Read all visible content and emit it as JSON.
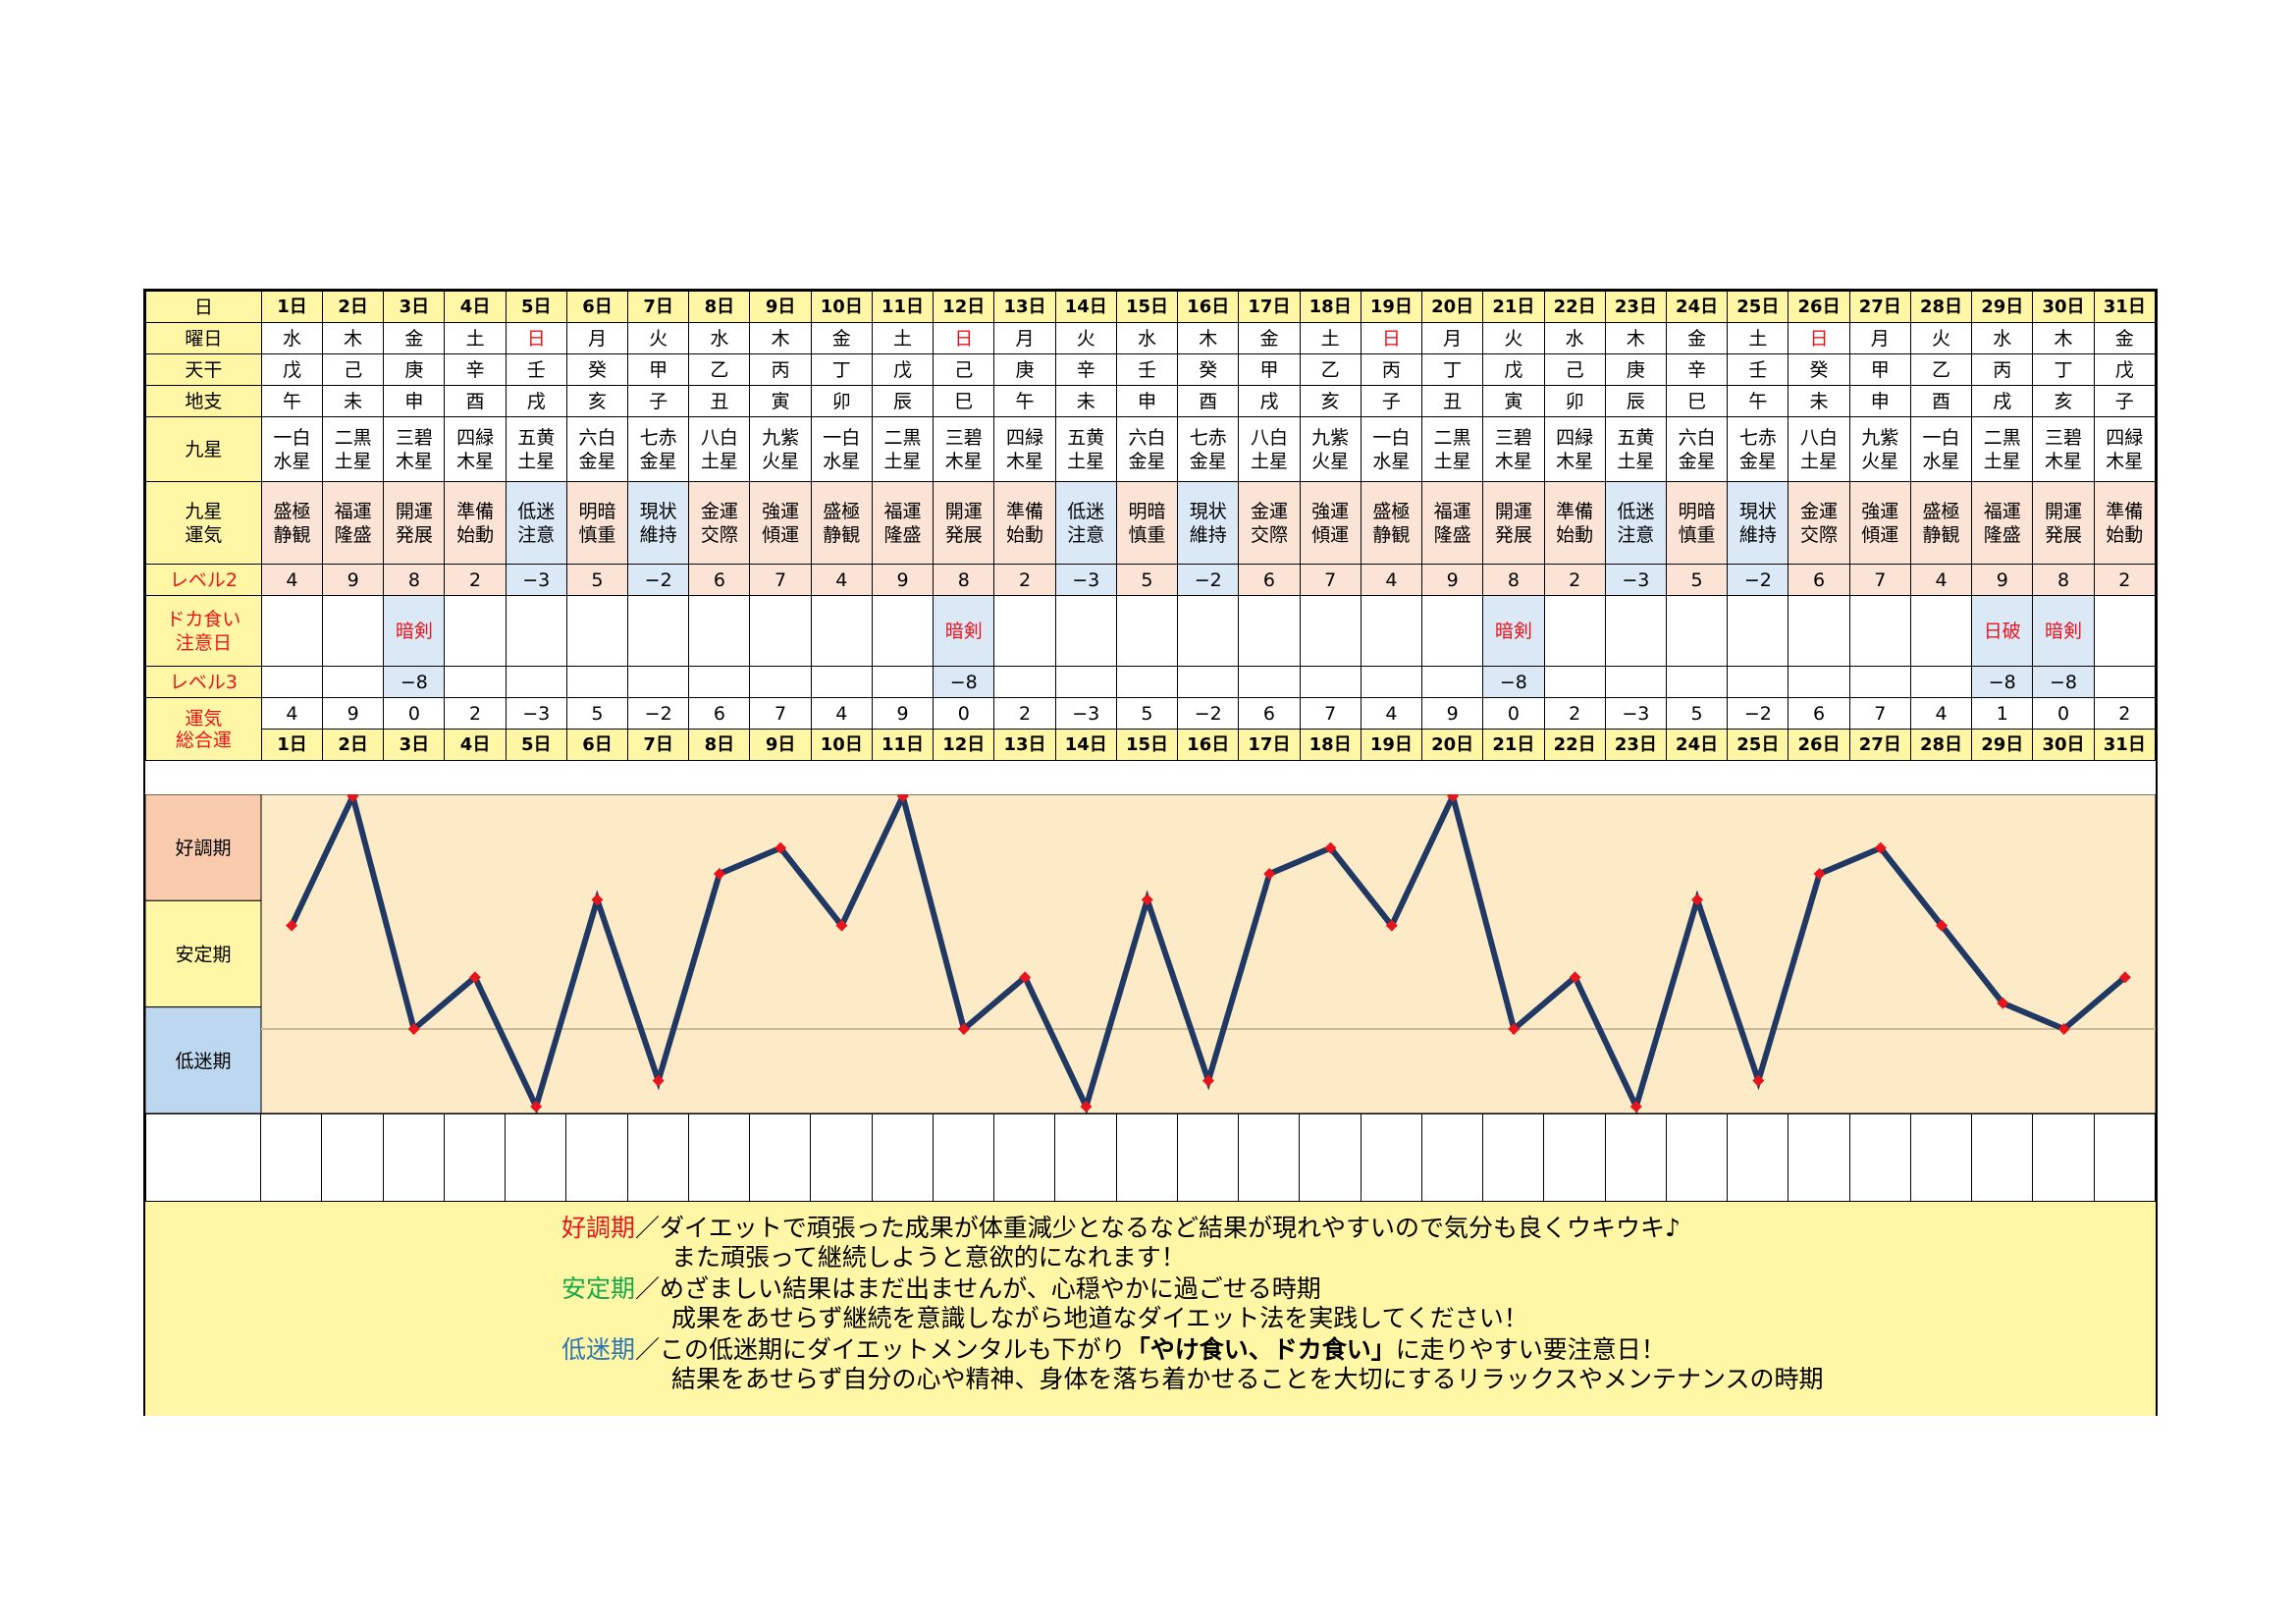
{
  "labels": {
    "day": "日",
    "weekday": "曜日",
    "kan": "天干",
    "shi": "地支",
    "kyusei": "九星",
    "unki": [
      "九星",
      "運気"
    ],
    "level2": "レベル2",
    "doka": [
      "ドカ食い",
      "注意日"
    ],
    "level3": "レベル3",
    "total": [
      "運気",
      "総合運"
    ]
  },
  "days": [
    "1日",
    "2日",
    "3日",
    "4日",
    "5日",
    "6日",
    "7日",
    "8日",
    "9日",
    "10日",
    "11日",
    "12日",
    "13日",
    "14日",
    "15日",
    "16日",
    "17日",
    "18日",
    "19日",
    "20日",
    "21日",
    "22日",
    "23日",
    "24日",
    "25日",
    "26日",
    "27日",
    "28日",
    "29日",
    "30日",
    "31日"
  ],
  "weekdays": [
    "水",
    "木",
    "金",
    "土",
    "日",
    "月",
    "火",
    "水",
    "木",
    "金",
    "土",
    "日",
    "月",
    "火",
    "水",
    "木",
    "金",
    "土",
    "日",
    "月",
    "火",
    "水",
    "木",
    "金",
    "土",
    "日",
    "月",
    "火",
    "水",
    "木",
    "金"
  ],
  "kan": [
    "戊",
    "己",
    "庚",
    "辛",
    "壬",
    "癸",
    "甲",
    "乙",
    "丙",
    "丁",
    "戊",
    "己",
    "庚",
    "辛",
    "壬",
    "癸",
    "甲",
    "乙",
    "丙",
    "丁",
    "戊",
    "己",
    "庚",
    "辛",
    "壬",
    "癸",
    "甲",
    "乙",
    "丙",
    "丁",
    "戊"
  ],
  "shi": [
    "午",
    "未",
    "申",
    "酉",
    "戌",
    "亥",
    "子",
    "丑",
    "寅",
    "卯",
    "辰",
    "巳",
    "午",
    "未",
    "申",
    "酉",
    "戌",
    "亥",
    "子",
    "丑",
    "寅",
    "卯",
    "辰",
    "巳",
    "午",
    "未",
    "申",
    "酉",
    "戌",
    "亥",
    "子"
  ],
  "kyusei": [
    [
      "一白",
      "水星"
    ],
    [
      "二黒",
      "土星"
    ],
    [
      "三碧",
      "木星"
    ],
    [
      "四緑",
      "木星"
    ],
    [
      "五黄",
      "土星"
    ],
    [
      "六白",
      "金星"
    ],
    [
      "七赤",
      "金星"
    ],
    [
      "八白",
      "土星"
    ],
    [
      "九紫",
      "火星"
    ],
    [
      "一白",
      "水星"
    ],
    [
      "二黒",
      "土星"
    ],
    [
      "三碧",
      "木星"
    ],
    [
      "四緑",
      "木星"
    ],
    [
      "五黄",
      "土星"
    ],
    [
      "六白",
      "金星"
    ],
    [
      "七赤",
      "金星"
    ],
    [
      "八白",
      "土星"
    ],
    [
      "九紫",
      "火星"
    ],
    [
      "一白",
      "水星"
    ],
    [
      "二黒",
      "土星"
    ],
    [
      "三碧",
      "木星"
    ],
    [
      "四緑",
      "木星"
    ],
    [
      "五黄",
      "土星"
    ],
    [
      "六白",
      "金星"
    ],
    [
      "七赤",
      "金星"
    ],
    [
      "八白",
      "土星"
    ],
    [
      "九紫",
      "火星"
    ],
    [
      "一白",
      "水星"
    ],
    [
      "二黒",
      "土星"
    ],
    [
      "三碧",
      "木星"
    ],
    [
      "四緑",
      "木星"
    ]
  ],
  "unki": [
    [
      "盛極",
      "静観"
    ],
    [
      "福運",
      "隆盛"
    ],
    [
      "開運",
      "発展"
    ],
    [
      "準備",
      "始動"
    ],
    [
      "低迷",
      "注意"
    ],
    [
      "明暗",
      "慎重"
    ],
    [
      "現状",
      "維持"
    ],
    [
      "金運",
      "交際"
    ],
    [
      "強運",
      "傾運"
    ],
    [
      "盛極",
      "静観"
    ],
    [
      "福運",
      "隆盛"
    ],
    [
      "開運",
      "発展"
    ],
    [
      "準備",
      "始動"
    ],
    [
      "低迷",
      "注意"
    ],
    [
      "明暗",
      "慎重"
    ],
    [
      "現状",
      "維持"
    ],
    [
      "金運",
      "交際"
    ],
    [
      "強運",
      "傾運"
    ],
    [
      "盛極",
      "静観"
    ],
    [
      "福運",
      "隆盛"
    ],
    [
      "開運",
      "発展"
    ],
    [
      "準備",
      "始動"
    ],
    [
      "低迷",
      "注意"
    ],
    [
      "明暗",
      "慎重"
    ],
    [
      "現状",
      "維持"
    ],
    [
      "金運",
      "交際"
    ],
    [
      "強運",
      "傾運"
    ],
    [
      "盛極",
      "静観"
    ],
    [
      "福運",
      "隆盛"
    ],
    [
      "開運",
      "発展"
    ],
    [
      "準備",
      "始動"
    ]
  ],
  "level2": [
    "4",
    "9",
    "8",
    "2",
    "−3",
    "5",
    "−2",
    "6",
    "7",
    "4",
    "9",
    "8",
    "2",
    "−3",
    "5",
    "−2",
    "6",
    "7",
    "4",
    "9",
    "8",
    "2",
    "−3",
    "5",
    "−2",
    "6",
    "7",
    "4",
    "9",
    "8",
    "2"
  ],
  "doka": [
    "",
    "",
    "暗剣",
    "",
    "",
    "",
    "",
    "",
    "",
    "",
    "",
    "暗剣",
    "",
    "",
    "",
    "",
    "",
    "",
    "",
    "",
    "暗剣",
    "",
    "",
    "",
    "",
    "",
    "",
    "",
    "日破",
    "暗剣",
    ""
  ],
  "level3": [
    "",
    "",
    "−8",
    "",
    "",
    "",
    "",
    "",
    "",
    "",
    "",
    "−8",
    "",
    "",
    "",
    "",
    "",
    "",
    "",
    "",
    "−8",
    "",
    "",
    "",
    "",
    "",
    "",
    "",
    "−8",
    "−8",
    ""
  ],
  "total": [
    "4",
    "9",
    "0",
    "2",
    "−3",
    "5",
    "−2",
    "6",
    "7",
    "4",
    "9",
    "0",
    "2",
    "−3",
    "5",
    "−2",
    "6",
    "7",
    "4",
    "9",
    "0",
    "2",
    "−3",
    "5",
    "−2",
    "6",
    "7",
    "4",
    "1",
    "0",
    "2"
  ],
  "chart_data": {
    "type": "line",
    "x": [
      "1日",
      "2日",
      "3日",
      "4日",
      "5日",
      "6日",
      "7日",
      "8日",
      "9日",
      "10日",
      "11日",
      "12日",
      "13日",
      "14日",
      "15日",
      "16日",
      "17日",
      "18日",
      "19日",
      "20日",
      "21日",
      "22日",
      "23日",
      "24日",
      "25日",
      "26日",
      "27日",
      "28日",
      "29日",
      "30日",
      "31日"
    ],
    "series": [
      {
        "values": [
          4,
          9,
          0,
          2,
          -3,
          5,
          -2,
          6,
          7,
          4,
          9,
          0,
          2,
          -3,
          5,
          -2,
          6,
          7,
          4,
          9,
          0,
          2,
          -3,
          5,
          -2,
          6,
          7,
          4,
          1,
          0,
          2
        ]
      }
    ],
    "ylim": [
      -3,
      9
    ],
    "bands": [
      "好調期",
      "安定期",
      "低迷期"
    ],
    "line_color": "#1f3864",
    "marker_color": "#e8141c",
    "plot_bg": "#fdebc8"
  },
  "legend": {
    "lines": [
      {
        "head": "好調期",
        "text": "／ダイエットで頑張った成果が体重減少となるなど結果が現れやすいので気分も良くウキウキ♪"
      },
      {
        "head": "",
        "text": "また頑張って継続しようと意欲的になれます！"
      },
      {
        "head": "安定期",
        "text": "／めざましい結果はまだ出ませんが、心穏やかに過ごせる時期"
      },
      {
        "head": "",
        "text": "成果をあせらず継続を意識しながら地道なダイエット法を実践してください！"
      },
      {
        "head": "低迷期",
        "text": "／この低迷期にダイエットメンタルも下がり",
        "bold": "「やけ食い、ドカ食い」",
        "tail": "に走りやすい要注意日！"
      },
      {
        "head": "",
        "text": "結果をあせらず自分の心や精神、身体を落ち着かせることを大切にするリラックスやメンテナンスの時期"
      }
    ]
  }
}
